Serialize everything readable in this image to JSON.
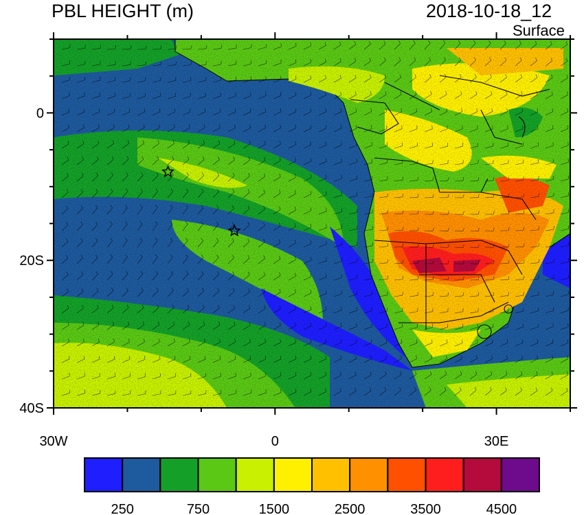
{
  "title": "PBL HEIGHT (m)",
  "datetime": "2018-10-18_12",
  "level": "Surface",
  "map": {
    "lon_range": [
      -30,
      40
    ],
    "lat_range": [
      -40,
      10
    ],
    "lon_ticks": [
      {
        "value": -30,
        "label": "30W"
      },
      {
        "value": 0,
        "label": "0"
      },
      {
        "value": 30,
        "label": "30E"
      }
    ],
    "lat_ticks": [
      {
        "value": 0,
        "label": "0"
      },
      {
        "value": -20,
        "label": "20S"
      },
      {
        "value": -40,
        "label": "40S"
      }
    ],
    "overlay": "wind barbs",
    "markers": [
      {
        "name": "star",
        "lon": -14.5,
        "lat": -8
      },
      {
        "name": "star",
        "lon": -5.5,
        "lat": -16
      }
    ]
  },
  "colorbar": {
    "colors": [
      "#1e1eff",
      "#1e5a9e",
      "#14a028",
      "#5ac814",
      "#c8f000",
      "#fff000",
      "#ffc000",
      "#ff9000",
      "#ff5000",
      "#ff1e1e",
      "#b40a3c",
      "#6e0a8c"
    ],
    "labels": [
      "250",
      "750",
      "1500",
      "2500",
      "3500",
      "4500"
    ]
  }
}
